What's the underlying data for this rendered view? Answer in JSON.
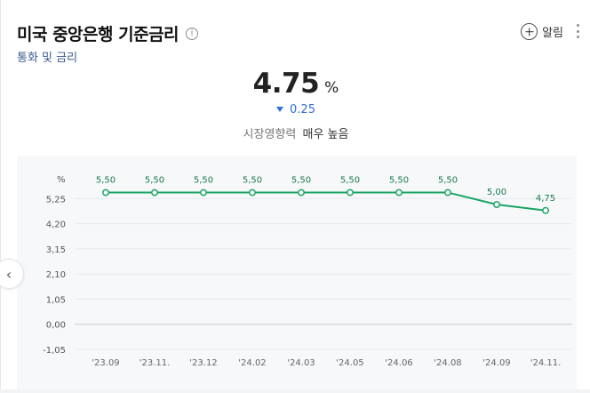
{
  "header": {
    "title": "미국 중앙은행 기준금리",
    "subtitle": "통화 및 금리",
    "alarm_label": "알림"
  },
  "summary": {
    "value": "4.75",
    "unit": "%",
    "change": "0.25",
    "direction": "down",
    "impact_label": "시장영향력",
    "impact_level": "매우 높음"
  },
  "colors": {
    "line": "#1aa564",
    "down": "#2f6fd8"
  },
  "chart_data": {
    "type": "line",
    "ylabel": "%",
    "ylim": [
      -1.05,
      6.3
    ],
    "yticks": [
      -1.05,
      0,
      1.05,
      2.1,
      3.15,
      4.2,
      5.25
    ],
    "ytick_labels": [
      "-1,05",
      "0,00",
      "1,05",
      "2,10",
      "3,15",
      "4,20",
      "5,25"
    ],
    "categories": [
      "'23.09",
      "'23.11.",
      "'23.12",
      "'24.02",
      "'24.03",
      "'24.05",
      "'24.06",
      "'24.08",
      "'24.09",
      "'24.11."
    ],
    "series": [
      {
        "values": [
          5.5,
          5.5,
          5.5,
          5.5,
          5.5,
          5.5,
          5.5,
          5.5,
          5.0,
          4.75
        ],
        "labels": [
          "5,50",
          "5,50",
          "5,50",
          "5,50",
          "5,50",
          "5,50",
          "5,50",
          "5,50",
          "5,00",
          "4,75"
        ]
      }
    ],
    "grid": true
  }
}
